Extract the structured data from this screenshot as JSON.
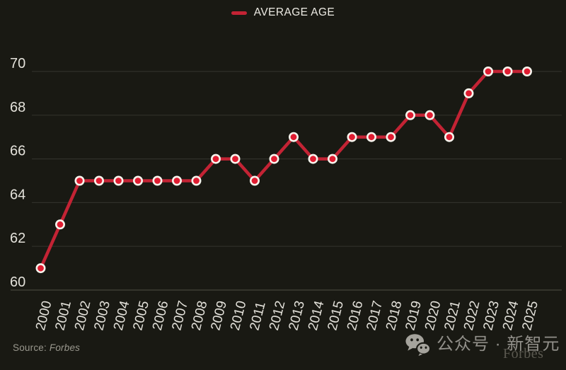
{
  "colors": {
    "background": "#191913",
    "grid": "#30302a",
    "axis": "#3d3d35",
    "tick_label": "#e3e1da",
    "legend_text": "#eceae3",
    "line": "#c32334",
    "marker_fill": "#e01c31",
    "marker_ring": "#f6f3ec",
    "source_text": "#9a988e",
    "watermark_text": "#92908a",
    "watermark_icon": "#a5a39c",
    "forbes_watermark": "#5b5950"
  },
  "chart_data": {
    "type": "line",
    "title": "",
    "x": [
      2000,
      2001,
      2002,
      2003,
      2004,
      2005,
      2006,
      2007,
      2008,
      2009,
      2010,
      2011,
      2012,
      2013,
      2014,
      2015,
      2016,
      2017,
      2018,
      2019,
      2020,
      2021,
      2022,
      2023,
      2024,
      2025
    ],
    "series": [
      {
        "name": "AVERAGE AGE",
        "values": [
          61,
          63,
          65,
          65,
          65,
          65,
          65,
          65,
          65,
          66,
          66,
          65,
          66,
          67,
          66,
          66,
          67,
          67,
          67,
          68,
          68,
          67,
          69,
          70,
          70,
          70
        ]
      }
    ],
    "xlabel": "",
    "ylabel": "",
    "ylim": [
      60,
      70
    ],
    "yticks": [
      60,
      62,
      64,
      66,
      68,
      70
    ],
    "grid": true,
    "legend_position": "top-center",
    "marker": "circle-with-ring",
    "x_tick_rotation_deg": -76
  },
  "footer": {
    "source_prefix": "Source:",
    "source_name": "Forbes"
  },
  "watermark": {
    "wechat_label": "公众号 · 新智元",
    "forbes_text": "Forbes"
  },
  "icons": {
    "wechat": "wechat-icon"
  }
}
